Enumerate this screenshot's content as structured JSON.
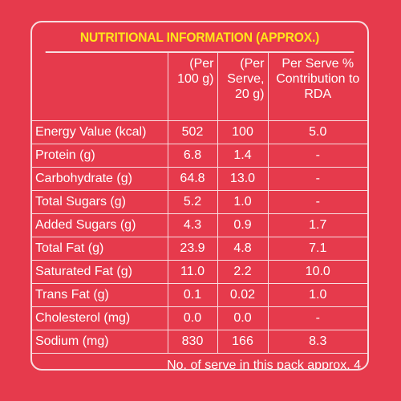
{
  "title": "NUTRITIONAL INFORMATION (APPROX.)",
  "headers": {
    "col0": "",
    "col1": "(Per 100 g)",
    "col2": "(Per Serve, 20 g)",
    "col3": "Per Serve % Contribution to RDA"
  },
  "rows": [
    {
      "name": "Energy Value (kcal)",
      "per100g": "502",
      "perServe": "100",
      "rda": "5.0"
    },
    {
      "name": "Protein (g)",
      "per100g": "6.8",
      "perServe": "1.4",
      "rda": "-"
    },
    {
      "name": "Carbohydrate (g)",
      "per100g": "64.8",
      "perServe": "13.0",
      "rda": "-"
    },
    {
      "name": "Total Sugars (g)",
      "per100g": "5.2",
      "perServe": "1.0",
      "rda": "-"
    },
    {
      "name": "Added Sugars (g)",
      "per100g": "4.3",
      "perServe": "0.9",
      "rda": "1.7"
    },
    {
      "name": "Total Fat (g)",
      "per100g": "23.9",
      "perServe": "4.8",
      "rda": "7.1"
    },
    {
      "name": "Saturated Fat (g)",
      "per100g": "11.0",
      "perServe": "2.2",
      "rda": "10.0"
    },
    {
      "name": "Trans Fat (g)",
      "per100g": "0.1",
      "perServe": "0.02",
      "rda": "1.0"
    },
    {
      "name": "Cholesterol (mg)",
      "per100g": "0.0",
      "perServe": "0.0",
      "rda": "-"
    },
    {
      "name": "Sodium (mg)",
      "per100g": "830",
      "perServe": "166",
      "rda": "8.3"
    }
  ],
  "footer": "No. of serve in this pack approx. 4",
  "colors": {
    "background": "#e63a4c",
    "title": "#ffe51a",
    "text": "#ffffff",
    "border": "#f8dde0"
  }
}
